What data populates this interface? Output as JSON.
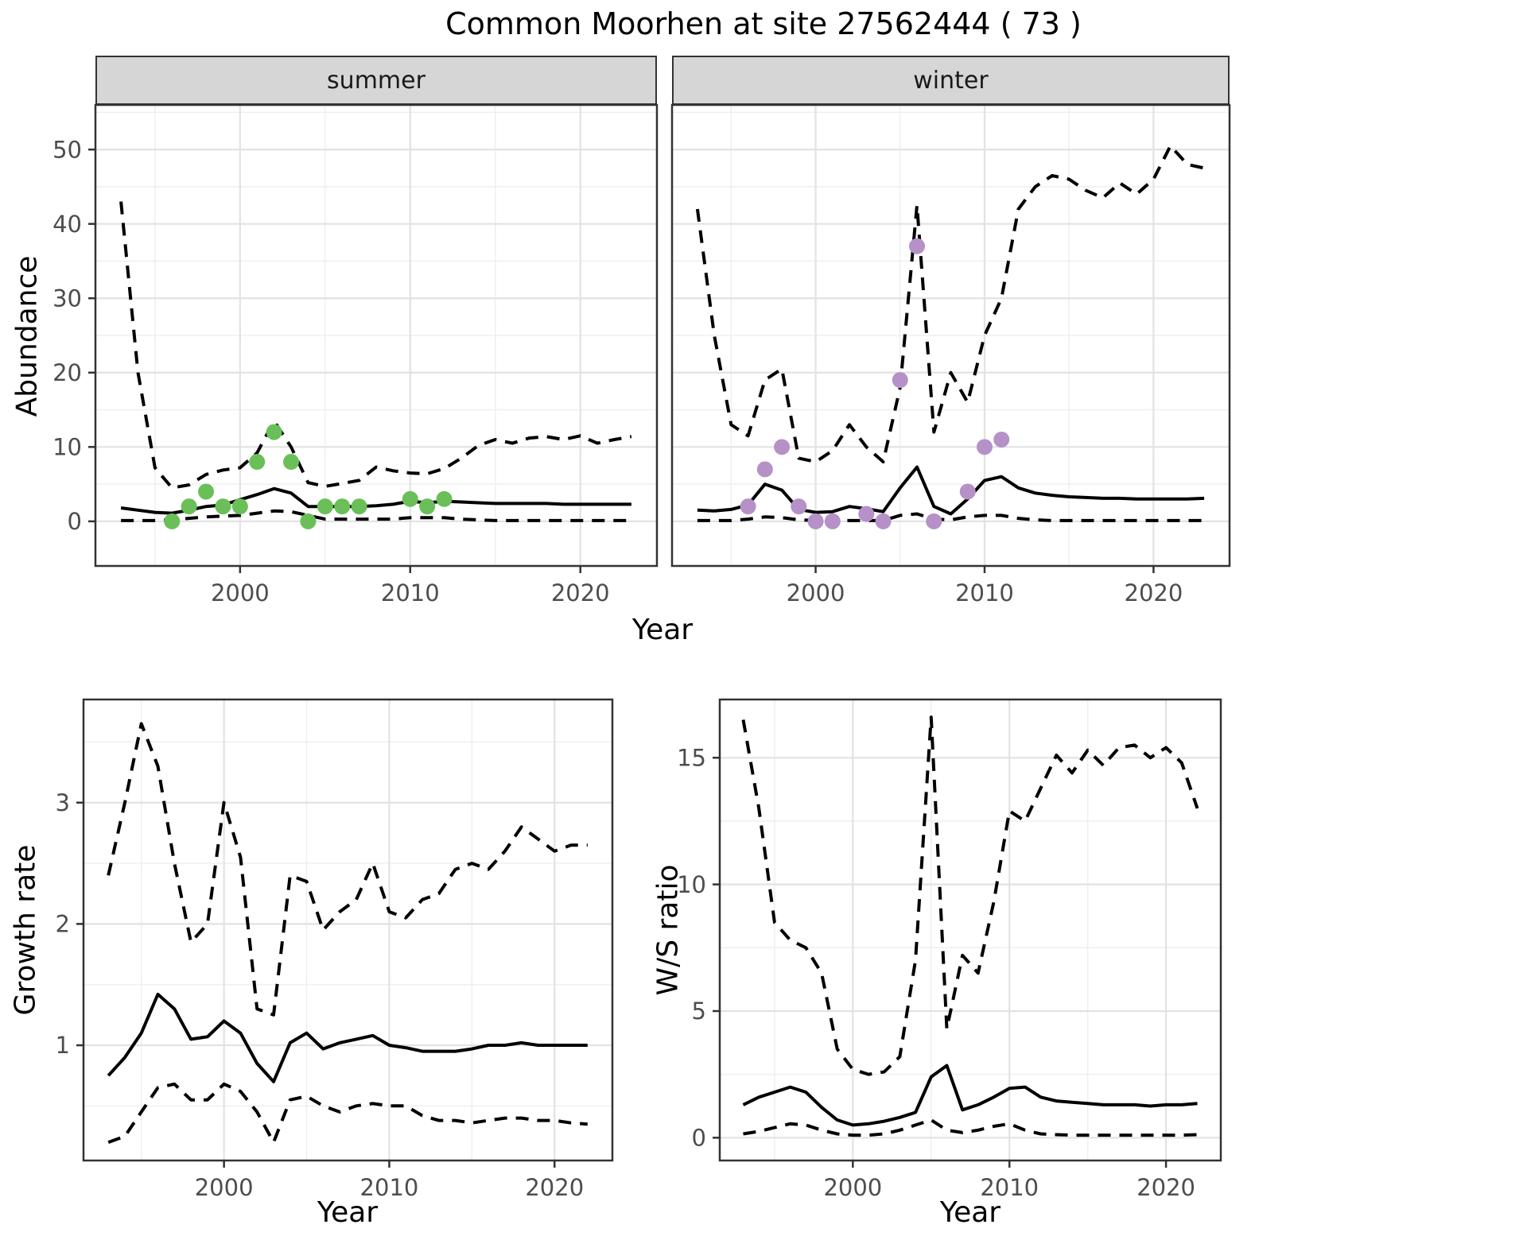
{
  "figure": {
    "title": "Common Moorhen at site 27562444 ( 73 )"
  },
  "colors": {
    "summer_obs": "#6abf59",
    "winter_obs": "#b591c8",
    "line": "#000000",
    "grid_major": "#e2e2e2",
    "grid_minor": "#efefef",
    "strip_bg": "#d6d6d6",
    "tick_text": "#4d4d4d",
    "panel_border": "#333333"
  },
  "chart_data": [
    {
      "id": "abundance-summer",
      "type": "line",
      "facet_label": "summer",
      "xlabel": "Year",
      "ylabel": "Abundance",
      "x_domain": [
        1991.5,
        2024.5
      ],
      "y_domain": [
        -6,
        56
      ],
      "x_ticks": [
        2000,
        2010,
        2020
      ],
      "x_minor": [
        1995,
        2005,
        2015
      ],
      "y_ticks": [
        0,
        10,
        20,
        30,
        40,
        50
      ],
      "y_minor": [
        5,
        15,
        25,
        35,
        45,
        55
      ],
      "show_y_tick_labels": true,
      "years": [
        1993,
        1994,
        1995,
        1996,
        1997,
        1998,
        1999,
        2000,
        2001,
        2002,
        2003,
        2004,
        2005,
        2006,
        2007,
        2008,
        2009,
        2010,
        2011,
        2012,
        2013,
        2014,
        2015,
        2016,
        2017,
        2018,
        2019,
        2020,
        2021,
        2022,
        2023
      ],
      "series": [
        {
          "name": "median",
          "style": "solid",
          "values": [
            1.8,
            1.5,
            1.2,
            1.1,
            1.5,
            2.0,
            2.2,
            2.9,
            3.6,
            4.4,
            3.8,
            2.0,
            2.0,
            2.0,
            2.0,
            2.1,
            2.3,
            2.7,
            2.5,
            2.7,
            2.6,
            2.5,
            2.4,
            2.4,
            2.4,
            2.4,
            2.3,
            2.3,
            2.3,
            2.3,
            2.3
          ]
        },
        {
          "name": "upper_ci",
          "style": "dashed",
          "values": [
            43,
            20,
            7.2,
            4.5,
            4.9,
            6.3,
            6.9,
            7.2,
            9.2,
            13.5,
            10,
            5.2,
            4.7,
            5.1,
            5.5,
            7.3,
            6.8,
            6.5,
            6.4,
            7.1,
            8.5,
            10.2,
            11,
            10.5,
            11.2,
            11.4,
            11,
            11.5,
            10.5,
            11,
            11.4
          ]
        },
        {
          "name": "lower_ci",
          "style": "dashed",
          "values": [
            0.1,
            0.1,
            0.1,
            0.2,
            0.4,
            0.6,
            0.7,
            0.8,
            1.1,
            1.4,
            1.3,
            0.8,
            0.3,
            0.3,
            0.3,
            0.3,
            0.3,
            0.5,
            0.5,
            0.5,
            0.3,
            0.2,
            0.1,
            0.1,
            0.1,
            0.1,
            0.1,
            0.1,
            0.1,
            0.1,
            0.1
          ]
        }
      ],
      "observations": {
        "color_key": "summer_obs",
        "points": [
          [
            1996,
            0
          ],
          [
            1997,
            2
          ],
          [
            1998,
            4
          ],
          [
            1999,
            2
          ],
          [
            2000,
            2
          ],
          [
            2001,
            8
          ],
          [
            2002,
            12
          ],
          [
            2003,
            8
          ],
          [
            2004,
            0
          ],
          [
            2005,
            2
          ],
          [
            2006,
            2
          ],
          [
            2007,
            2
          ],
          [
            2010,
            3
          ],
          [
            2011,
            2
          ],
          [
            2012,
            3
          ]
        ]
      }
    },
    {
      "id": "abundance-winter",
      "type": "line",
      "facet_label": "winter",
      "xlabel": "Year",
      "ylabel": "Abundance",
      "x_domain": [
        1991.5,
        2024.5
      ],
      "y_domain": [
        -6,
        56
      ],
      "x_ticks": [
        2000,
        2010,
        2020
      ],
      "x_minor": [
        1995,
        2005,
        2015
      ],
      "y_ticks": [
        0,
        10,
        20,
        30,
        40,
        50
      ],
      "y_minor": [
        5,
        15,
        25,
        35,
        45,
        55
      ],
      "show_y_tick_labels": false,
      "years": [
        1993,
        1994,
        1995,
        1996,
        1997,
        1998,
        1999,
        2000,
        2001,
        2002,
        2003,
        2004,
        2005,
        2006,
        2007,
        2008,
        2009,
        2010,
        2011,
        2012,
        2013,
        2014,
        2015,
        2016,
        2017,
        2018,
        2019,
        2020,
        2021,
        2022,
        2023
      ],
      "series": [
        {
          "name": "median",
          "style": "solid",
          "values": [
            1.5,
            1.4,
            1.6,
            2.2,
            5.0,
            4.2,
            1.6,
            1.2,
            1.3,
            2.0,
            1.7,
            1.3,
            4.5,
            7.3,
            2.0,
            1.0,
            3.0,
            5.5,
            6.0,
            4.5,
            3.8,
            3.5,
            3.3,
            3.2,
            3.1,
            3.1,
            3.0,
            3.0,
            3.0,
            3.0,
            3.1
          ]
        },
        {
          "name": "upper_ci",
          "style": "dashed",
          "values": [
            42,
            25,
            13,
            11.5,
            19,
            20.5,
            8.5,
            8,
            9.5,
            13,
            10,
            8,
            18,
            42.5,
            12,
            20,
            16,
            25,
            30,
            42,
            45,
            46.5,
            46,
            44.5,
            43.5,
            45.5,
            44,
            46,
            50.5,
            48,
            47.5
          ]
        },
        {
          "name": "lower_ci",
          "style": "dashed",
          "values": [
            0.1,
            0.1,
            0.1,
            0.3,
            0.6,
            0.5,
            0.2,
            0.1,
            0.1,
            0.1,
            0.1,
            0.1,
            0.8,
            1.0,
            0.3,
            0.2,
            0.6,
            0.8,
            0.8,
            0.4,
            0.2,
            0.1,
            0.1,
            0.1,
            0.1,
            0.1,
            0.1,
            0.1,
            0.1,
            0.1,
            0.1
          ]
        }
      ],
      "observations": {
        "color_key": "winter_obs",
        "points": [
          [
            1996,
            2
          ],
          [
            1997,
            7
          ],
          [
            1998,
            10
          ],
          [
            1999,
            2
          ],
          [
            2000,
            0
          ],
          [
            2001,
            0
          ],
          [
            2003,
            1
          ],
          [
            2004,
            0
          ],
          [
            2005,
            19
          ],
          [
            2006,
            37
          ],
          [
            2007,
            0
          ],
          [
            2009,
            4
          ],
          [
            2010,
            10
          ],
          [
            2011,
            11
          ]
        ]
      }
    },
    {
      "id": "growth-rate",
      "type": "line",
      "facet_label": "",
      "xlabel": "Year",
      "ylabel": "Growth rate",
      "x_domain": [
        1991.5,
        2023.5
      ],
      "y_domain": [
        0.05,
        3.85
      ],
      "x_ticks": [
        2000,
        2010,
        2020
      ],
      "x_minor": [
        1995,
        2005,
        2015
      ],
      "y_ticks": [
        1,
        2,
        3
      ],
      "y_minor": [
        0.5,
        1.5,
        2.5,
        3.5
      ],
      "show_y_tick_labels": true,
      "years": [
        1993,
        1994,
        1995,
        1996,
        1997,
        1998,
        1999,
        2000,
        2001,
        2002,
        2003,
        2004,
        2005,
        2006,
        2007,
        2008,
        2009,
        2010,
        2011,
        2012,
        2013,
        2014,
        2015,
        2016,
        2017,
        2018,
        2019,
        2020,
        2021,
        2022
      ],
      "series": [
        {
          "name": "median",
          "style": "solid",
          "values": [
            0.75,
            0.9,
            1.1,
            1.42,
            1.3,
            1.05,
            1.07,
            1.2,
            1.1,
            0.85,
            0.7,
            1.02,
            1.1,
            0.97,
            1.02,
            1.05,
            1.08,
            1.0,
            0.98,
            0.95,
            0.95,
            0.95,
            0.97,
            1.0,
            1.0,
            1.02,
            1.0,
            1.0,
            1.0,
            1.0
          ]
        },
        {
          "name": "upper_ci",
          "style": "dashed",
          "values": [
            2.4,
            3.0,
            3.65,
            3.3,
            2.5,
            1.85,
            2.0,
            3.0,
            2.55,
            1.3,
            1.25,
            2.4,
            2.35,
            1.95,
            2.1,
            2.2,
            2.5,
            2.1,
            2.05,
            2.2,
            2.25,
            2.45,
            2.5,
            2.45,
            2.6,
            2.8,
            2.7,
            2.6,
            2.65,
            2.65
          ]
        },
        {
          "name": "lower_ci",
          "style": "dashed",
          "values": [
            0.2,
            0.25,
            0.45,
            0.65,
            0.68,
            0.55,
            0.55,
            0.68,
            0.62,
            0.45,
            0.2,
            0.55,
            0.58,
            0.5,
            0.45,
            0.5,
            0.52,
            0.5,
            0.5,
            0.42,
            0.38,
            0.38,
            0.36,
            0.38,
            0.4,
            0.4,
            0.38,
            0.38,
            0.36,
            0.35
          ]
        }
      ],
      "observations": {
        "color_key": null,
        "points": []
      }
    },
    {
      "id": "ws-ratio",
      "type": "line",
      "facet_label": "",
      "xlabel": "Year",
      "ylabel": "W/S ratio",
      "x_domain": [
        1991.5,
        2023.5
      ],
      "y_domain": [
        -0.9,
        17.3
      ],
      "x_ticks": [
        2000,
        2010,
        2020
      ],
      "x_minor": [
        1995,
        2005,
        2015
      ],
      "y_ticks": [
        0,
        5,
        10,
        15
      ],
      "y_minor": [
        2.5,
        7.5,
        12.5
      ],
      "show_y_tick_labels": true,
      "years": [
        1993,
        1994,
        1995,
        1996,
        1997,
        1998,
        1999,
        2000,
        2001,
        2002,
        2003,
        2004,
        2005,
        2006,
        2007,
        2008,
        2009,
        2010,
        2011,
        2012,
        2013,
        2014,
        2015,
        2016,
        2017,
        2018,
        2019,
        2020,
        2021,
        2022
      ],
      "series": [
        {
          "name": "median",
          "style": "solid",
          "values": [
            1.3,
            1.6,
            1.8,
            2.0,
            1.8,
            1.2,
            0.7,
            0.5,
            0.55,
            0.65,
            0.8,
            1.0,
            2.4,
            2.85,
            1.1,
            1.3,
            1.6,
            1.95,
            2.0,
            1.6,
            1.45,
            1.4,
            1.35,
            1.3,
            1.3,
            1.3,
            1.25,
            1.3,
            1.3,
            1.35
          ]
        },
        {
          "name": "upper_ci",
          "style": "dashed",
          "values": [
            16.5,
            13.0,
            8.5,
            7.8,
            7.5,
            6.5,
            3.5,
            2.7,
            2.5,
            2.6,
            3.2,
            7.0,
            16.6,
            4.3,
            7.2,
            6.5,
            9.3,
            12.9,
            12.5,
            13.8,
            15.1,
            14.4,
            15.3,
            14.7,
            15.4,
            15.5,
            15.0,
            15.4,
            14.8,
            13.0
          ]
        },
        {
          "name": "lower_ci",
          "style": "dashed",
          "values": [
            0.15,
            0.25,
            0.4,
            0.55,
            0.5,
            0.3,
            0.15,
            0.1,
            0.1,
            0.15,
            0.3,
            0.5,
            0.7,
            0.3,
            0.2,
            0.3,
            0.45,
            0.55,
            0.3,
            0.15,
            0.12,
            0.1,
            0.1,
            0.1,
            0.1,
            0.1,
            0.1,
            0.1,
            0.1,
            0.12
          ]
        }
      ],
      "observations": {
        "color_key": null,
        "points": []
      }
    }
  ]
}
